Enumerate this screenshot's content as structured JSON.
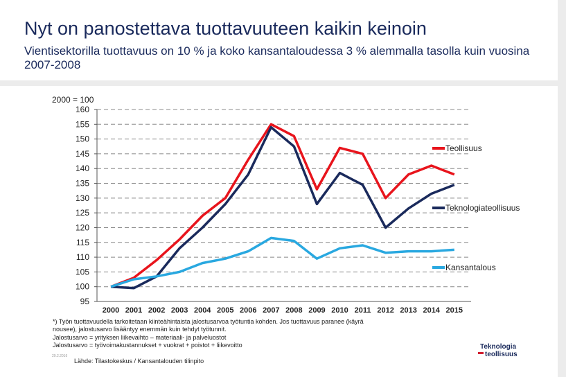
{
  "header": {
    "title": "Nyt on panostettava tuottavuuteen kaikin keinoin",
    "subtitle": "Vientisektorilla tuottavuus on 10 % ja koko kansantaloudessa 3 % alemmalla tasolla kuin vuosina 2007-2008"
  },
  "chart_data": {
    "type": "line",
    "title": "",
    "ylabel": "2000 = 100",
    "xlabel": "",
    "ylim": [
      95,
      160
    ],
    "y_ticks": [
      95,
      100,
      105,
      110,
      115,
      120,
      125,
      130,
      135,
      140,
      145,
      150,
      155,
      160
    ],
    "categories": [
      "2000",
      "2001",
      "2002",
      "2003",
      "2004",
      "2005",
      "2006",
      "2007",
      "2008",
      "2009",
      "2010",
      "2011",
      "2012",
      "2013",
      "2014",
      "2015"
    ],
    "grid": true,
    "series": [
      {
        "name": "Teollisuus",
        "color": "#e8141c",
        "values": [
          100,
          103,
          109,
          116,
          124,
          130,
          143,
          155,
          151,
          133,
          147,
          145,
          130,
          138,
          141,
          138
        ]
      },
      {
        "name": "Teknologiateollisuus",
        "color": "#1a2a5c",
        "values": [
          100,
          99.5,
          103.5,
          113,
          120,
          128,
          138,
          154,
          147.5,
          128,
          138.5,
          134.5,
          120,
          126.5,
          131.5,
          134.5
        ]
      },
      {
        "name": "Kansantalous",
        "color": "#29a8e0",
        "values": [
          100,
          102.5,
          103.5,
          105,
          108,
          109.5,
          112,
          116.5,
          115.5,
          109.5,
          113,
          114,
          111.5,
          112,
          112,
          112.5
        ]
      }
    ]
  },
  "notes": [
    "*) Työn tuottavuudella tarkoitetaan kiinteähintaista jalostusarvoa työtuntia kohden. Jos tuottavuus paranee (käyrä",
    "nousee), jalostusarvo lisääntyy enemmän kuin tehdyt työtunnit.",
    "Jalostusarvo = yrityksen liikevaihto – materiaali- ja palveluostot",
    "Jalostusarvo = työvoimakustannukset + vuokrat + poistot + liikevoitto"
  ],
  "source": "Lähde: Tilastokeskus / Kansantalouden tilinpito",
  "page_number": "29.2.2016",
  "logo": {
    "line1": "Teknologia",
    "line2": "teollisuus"
  },
  "colors": {
    "title": "#1a2a5c",
    "accent": "#d01e2f"
  }
}
